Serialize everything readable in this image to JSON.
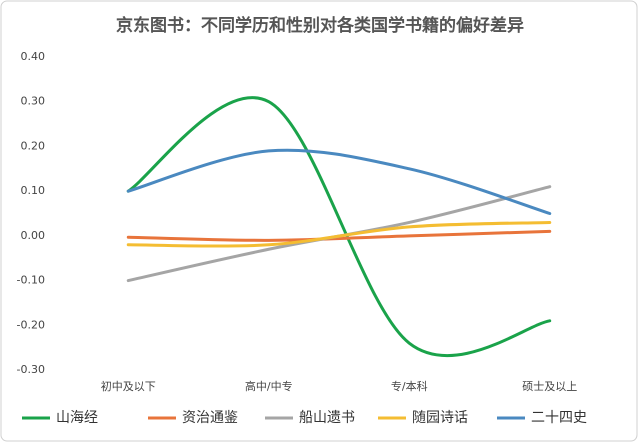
{
  "chart_data": {
    "type": "line",
    "title": "京东图书：不同学历和性别对各类国学书籍的偏好差异",
    "categories": [
      "初中及以下",
      "高中/中专",
      "专/本科",
      "硕士及以上"
    ],
    "series": [
      {
        "name": "山海经",
        "color": "#1aa34a",
        "values": [
          0.1,
          0.3,
          -0.24,
          -0.19
        ]
      },
      {
        "name": "资治通鉴",
        "color": "#e8743b",
        "values": [
          -0.003,
          -0.01,
          0.0,
          0.01
        ]
      },
      {
        "name": "船山遗书",
        "color": "#a5a5a5",
        "values": [
          -0.1,
          -0.03,
          0.03,
          0.11
        ]
      },
      {
        "name": "随园诗话",
        "color": "#f4bd32",
        "values": [
          -0.02,
          -0.02,
          0.02,
          0.03
        ]
      },
      {
        "name": "二十四史",
        "color": "#4a89c0",
        "values": [
          0.1,
          0.19,
          0.15,
          0.05
        ]
      }
    ],
    "ylim": [
      -0.3,
      0.4
    ],
    "yticks": [
      {
        "value": 0.4,
        "label": "0.40"
      },
      {
        "value": 0.3,
        "label": "0.30"
      },
      {
        "value": 0.2,
        "label": "0.20"
      },
      {
        "value": 0.1,
        "label": "0.10"
      },
      {
        "value": 0,
        "label": "0.00"
      },
      {
        "value": -0.1,
        "label": "-0.10"
      },
      {
        "value": -0.2,
        "label": "-0.20"
      },
      {
        "value": -0.3,
        "label": "-0.30"
      }
    ],
    "grid": false,
    "smooth": true,
    "legend": "bottom"
  }
}
